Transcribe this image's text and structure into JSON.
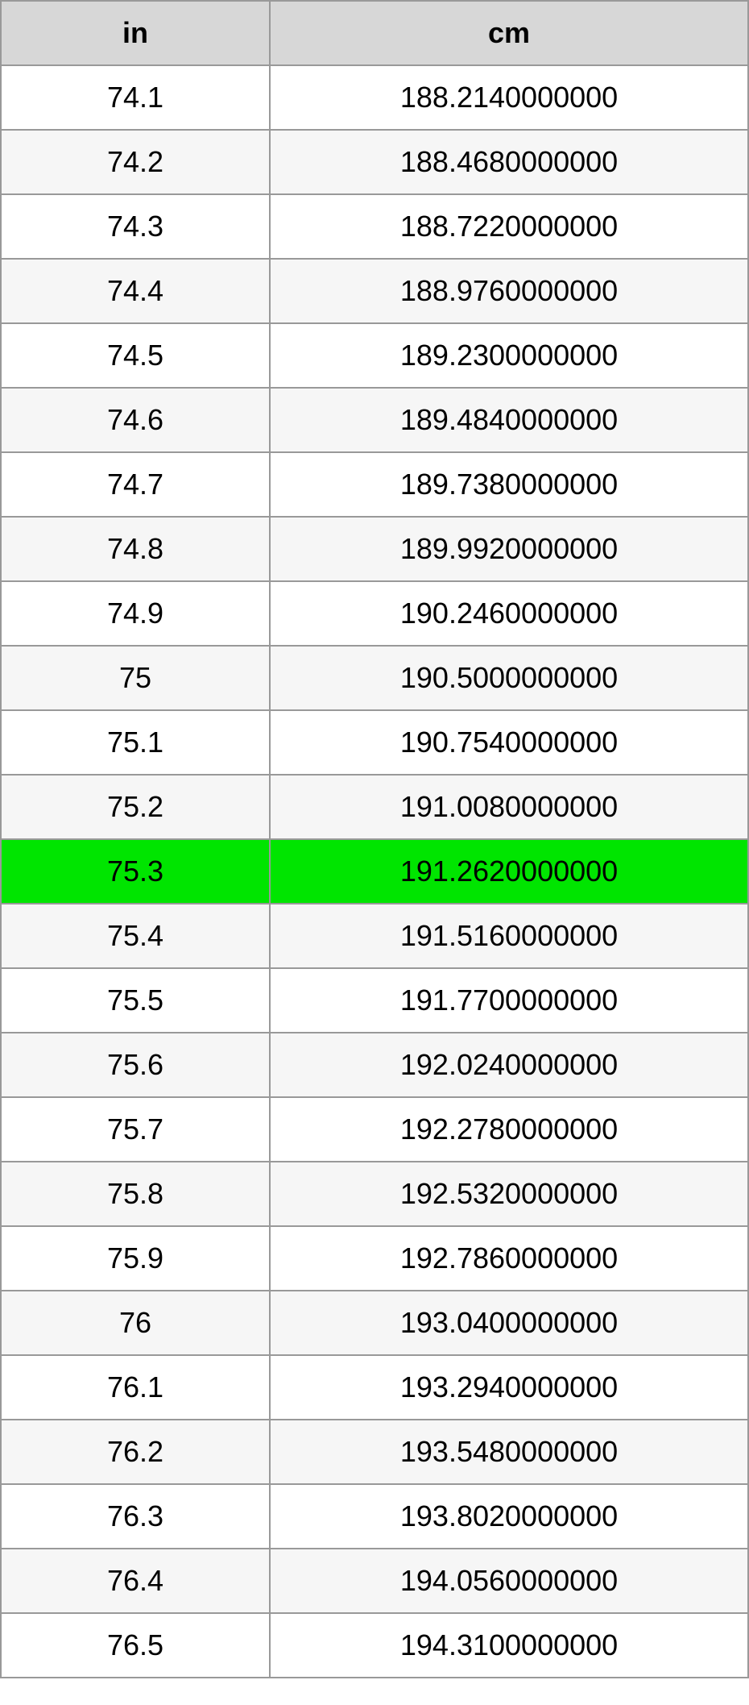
{
  "table": {
    "columns": [
      "in",
      "cm"
    ],
    "highlight_color": "#00e500",
    "header_bg": "#d7d7d7",
    "even_row_bg": "#f6f6f6",
    "odd_row_bg": "#ffffff",
    "border_color": "#999999",
    "rows": [
      {
        "in": "74.1",
        "cm": "188.2140000000",
        "highlighted": false
      },
      {
        "in": "74.2",
        "cm": "188.4680000000",
        "highlighted": false
      },
      {
        "in": "74.3",
        "cm": "188.7220000000",
        "highlighted": false
      },
      {
        "in": "74.4",
        "cm": "188.9760000000",
        "highlighted": false
      },
      {
        "in": "74.5",
        "cm": "189.2300000000",
        "highlighted": false
      },
      {
        "in": "74.6",
        "cm": "189.4840000000",
        "highlighted": false
      },
      {
        "in": "74.7",
        "cm": "189.7380000000",
        "highlighted": false
      },
      {
        "in": "74.8",
        "cm": "189.9920000000",
        "highlighted": false
      },
      {
        "in": "74.9",
        "cm": "190.2460000000",
        "highlighted": false
      },
      {
        "in": "75",
        "cm": "190.5000000000",
        "highlighted": false
      },
      {
        "in": "75.1",
        "cm": "190.7540000000",
        "highlighted": false
      },
      {
        "in": "75.2",
        "cm": "191.0080000000",
        "highlighted": false
      },
      {
        "in": "75.3",
        "cm": "191.2620000000",
        "highlighted": true
      },
      {
        "in": "75.4",
        "cm": "191.5160000000",
        "highlighted": false
      },
      {
        "in": "75.5",
        "cm": "191.7700000000",
        "highlighted": false
      },
      {
        "in": "75.6",
        "cm": "192.0240000000",
        "highlighted": false
      },
      {
        "in": "75.7",
        "cm": "192.2780000000",
        "highlighted": false
      },
      {
        "in": "75.8",
        "cm": "192.5320000000",
        "highlighted": false
      },
      {
        "in": "75.9",
        "cm": "192.7860000000",
        "highlighted": false
      },
      {
        "in": "76",
        "cm": "193.0400000000",
        "highlighted": false
      },
      {
        "in": "76.1",
        "cm": "193.2940000000",
        "highlighted": false
      },
      {
        "in": "76.2",
        "cm": "193.5480000000",
        "highlighted": false
      },
      {
        "in": "76.3",
        "cm": "193.8020000000",
        "highlighted": false
      },
      {
        "in": "76.4",
        "cm": "194.0560000000",
        "highlighted": false
      },
      {
        "in": "76.5",
        "cm": "194.3100000000",
        "highlighted": false
      }
    ]
  }
}
